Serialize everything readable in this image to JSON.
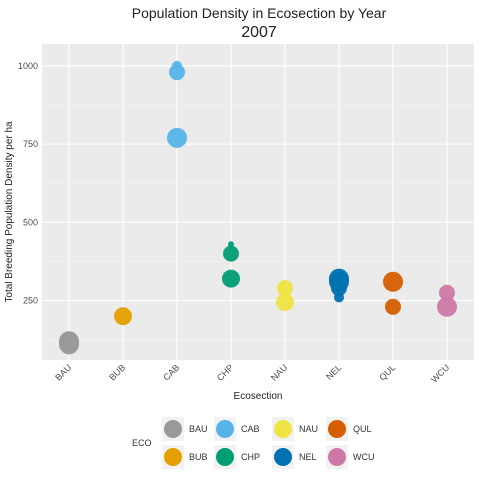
{
  "chart_data": {
    "type": "scatter",
    "title": "Population Density in Ecosection by Year",
    "subtitle": "2007",
    "xlabel": "Ecosection",
    "ylabel": "Total Breeding Population Density per ha",
    "categories": [
      "BAU",
      "BUB",
      "CAB",
      "CHP",
      "NAU",
      "NEL",
      "QUL",
      "WCU"
    ],
    "ylim": [
      60,
      1070
    ],
    "yticks": [
      250,
      500,
      750,
      1000
    ],
    "grid": true,
    "legend_title": "ECO",
    "legend_position": "bottom",
    "colors": {
      "BAU": "#999999",
      "BUB": "#E69F00",
      "CAB": "#56B4E9",
      "CHP": "#009E73",
      "NAU": "#F0E442",
      "NEL": "#0072B2",
      "QUL": "#D55E00",
      "WCU": "#CC79A7"
    },
    "series": [
      {
        "name": "BAU",
        "points": [
          [
            110,
            10
          ],
          [
            120,
            10
          ],
          [
            125,
            8
          ]
        ]
      },
      {
        "name": "BUB",
        "points": [
          [
            200,
            9
          ]
        ]
      },
      {
        "name": "CAB",
        "points": [
          [
            770,
            10
          ],
          [
            980,
            8
          ],
          [
            1000,
            5
          ]
        ]
      },
      {
        "name": "CHP",
        "points": [
          [
            320,
            9
          ],
          [
            400,
            8
          ],
          [
            430,
            3
          ]
        ]
      },
      {
        "name": "NAU",
        "points": [
          [
            245,
            9
          ],
          [
            290,
            8
          ]
        ]
      },
      {
        "name": "NEL",
        "points": [
          [
            260,
            5
          ],
          [
            290,
            8
          ],
          [
            310,
            10
          ],
          [
            320,
            10
          ]
        ]
      },
      {
        "name": "QUL",
        "points": [
          [
            230,
            8
          ],
          [
            310,
            10
          ]
        ]
      },
      {
        "name": "WCU",
        "points": [
          [
            230,
            10
          ],
          [
            275,
            8
          ]
        ]
      }
    ]
  }
}
